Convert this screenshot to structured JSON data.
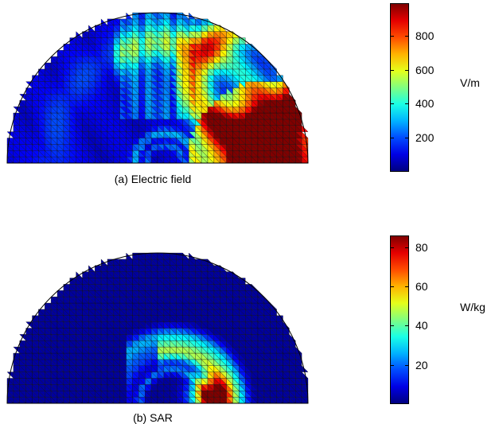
{
  "panels": [
    {
      "id": "a",
      "caption": "(a) Electric field",
      "colorbar": {
        "unit": "V/m",
        "min": 0,
        "max": 990,
        "ticks": [
          200,
          400,
          600,
          800
        ]
      }
    },
    {
      "id": "b",
      "caption": "(b) SAR",
      "colorbar": {
        "unit": "W/kg",
        "min": 0,
        "max": 86,
        "ticks": [
          20,
          40,
          60,
          80
        ]
      }
    }
  ],
  "colormap": "jet"
}
